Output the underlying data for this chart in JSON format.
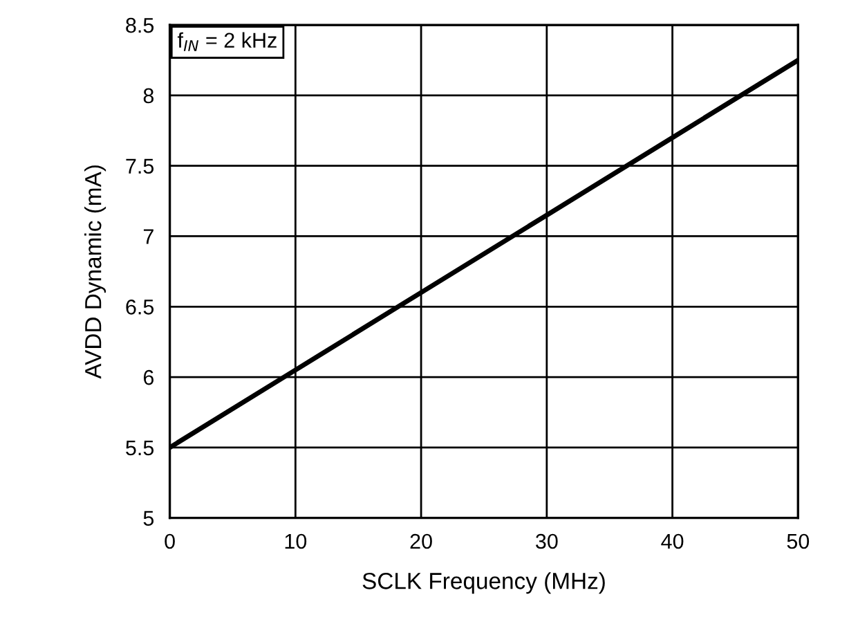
{
  "chart_data": {
    "type": "line",
    "xlabel": "SCLK Frequency (MHz)",
    "ylabel": "AVDD Dynamic (mA)",
    "annotations": [
      "f$_{IN}$ = 2 kHz"
    ],
    "x": [
      0,
      10,
      20,
      30,
      40,
      50
    ],
    "series": [
      {
        "color": "#000000",
        "values": [
          5.5,
          6.05,
          6.6,
          7.15,
          7.7,
          8.25
        ]
      }
    ],
    "xlim": [
      0,
      50
    ],
    "xticks": [
      0,
      10,
      20,
      30,
      40,
      50
    ],
    "ylim": [
      5,
      8.5
    ],
    "yticks": [
      5,
      5.5,
      6,
      6.5,
      7,
      7.5,
      8,
      8.5
    ],
    "grid": true,
    "marker": "none",
    "line_style": "solid"
  }
}
